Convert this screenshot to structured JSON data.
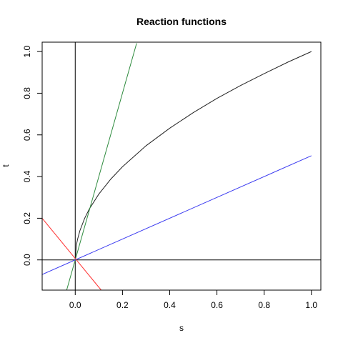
{
  "chart_data": {
    "type": "line",
    "title": "Reaction functions",
    "xlabel": "s",
    "ylabel": "t",
    "xlim": [
      -0.14,
      1.04
    ],
    "ylim": [
      -0.145,
      1.045
    ],
    "xticks": [
      "0.0",
      "0.2",
      "0.4",
      "0.6",
      "0.8",
      "1.0"
    ],
    "yticks": [
      "0.0",
      "0.2",
      "0.4",
      "0.6",
      "0.8",
      "1.0"
    ],
    "grid": false,
    "reference_lines": [
      {
        "orientation": "horizontal",
        "value": 0,
        "color": "#000000"
      },
      {
        "orientation": "vertical",
        "value": 0,
        "color": "#000000"
      }
    ],
    "series": [
      {
        "color": "#222222",
        "x": [
          0,
          0.005,
          0.01,
          0.02,
          0.04,
          0.06,
          0.1,
          0.15,
          0.2,
          0.3,
          0.4,
          0.5,
          0.6,
          0.7,
          0.8,
          0.9,
          1.0
        ],
        "y": [
          0,
          0.071,
          0.1,
          0.141,
          0.2,
          0.245,
          0.316,
          0.387,
          0.447,
          0.548,
          0.632,
          0.707,
          0.775,
          0.837,
          0.894,
          0.949,
          1.0
        ]
      },
      {
        "color": "#2e8b3e",
        "x": [
          -0.04,
          0.26
        ],
        "y": [
          -0.16,
          1.04
        ]
      },
      {
        "color": "#3a3af0",
        "x": [
          -0.14,
          1.0
        ],
        "y": [
          -0.07,
          0.5
        ]
      },
      {
        "color": "#ff3030",
        "x": [
          -0.14,
          0.11
        ],
        "y": [
          0.2,
          -0.145
        ]
      }
    ]
  }
}
